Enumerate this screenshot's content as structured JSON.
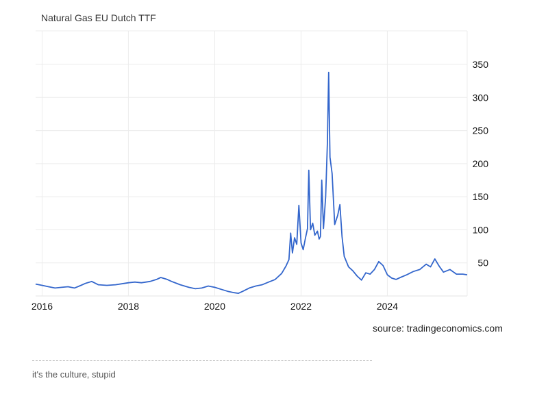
{
  "chart_data": {
    "type": "line",
    "title": "Natural Gas EU Dutch TTF",
    "xlabel": "",
    "ylabel": "",
    "xlim": [
      2015.85,
      2025.85
    ],
    "ylim": [
      0,
      350
    ],
    "x_ticks": [
      "2016",
      "2018",
      "2020",
      "2022",
      "2024"
    ],
    "y_ticks": [
      "50",
      "100",
      "150",
      "200",
      "250",
      "300",
      "350"
    ],
    "grid": true,
    "y_axis_position": "right",
    "series_color": "#3366cc",
    "series": [
      {
        "points": [
          [
            2015.85,
            18
          ],
          [
            2016.0,
            16
          ],
          [
            2016.15,
            14
          ],
          [
            2016.3,
            12
          ],
          [
            2016.45,
            13
          ],
          [
            2016.6,
            14
          ],
          [
            2016.75,
            12
          ],
          [
            2016.9,
            16
          ],
          [
            2017.0,
            19
          ],
          [
            2017.15,
            22
          ],
          [
            2017.3,
            17
          ],
          [
            2017.5,
            16
          ],
          [
            2017.7,
            17
          ],
          [
            2017.9,
            19
          ],
          [
            2018.0,
            20
          ],
          [
            2018.15,
            21
          ],
          [
            2018.3,
            20
          ],
          [
            2018.5,
            22
          ],
          [
            2018.65,
            25
          ],
          [
            2018.75,
            28
          ],
          [
            2018.9,
            25
          ],
          [
            2019.0,
            22
          ],
          [
            2019.2,
            17
          ],
          [
            2019.4,
            13
          ],
          [
            2019.55,
            11
          ],
          [
            2019.7,
            12
          ],
          [
            2019.85,
            15
          ],
          [
            2020.0,
            13
          ],
          [
            2020.15,
            10
          ],
          [
            2020.3,
            7
          ],
          [
            2020.45,
            5
          ],
          [
            2020.55,
            4
          ],
          [
            2020.65,
            7
          ],
          [
            2020.8,
            12
          ],
          [
            2020.95,
            15
          ],
          [
            2021.1,
            17
          ],
          [
            2021.25,
            21
          ],
          [
            2021.4,
            25
          ],
          [
            2021.55,
            34
          ],
          [
            2021.65,
            45
          ],
          [
            2021.72,
            55
          ],
          [
            2021.76,
            95
          ],
          [
            2021.8,
            65
          ],
          [
            2021.85,
            88
          ],
          [
            2021.9,
            78
          ],
          [
            2021.95,
            137
          ],
          [
            2022.0,
            80
          ],
          [
            2022.05,
            70
          ],
          [
            2022.1,
            87
          ],
          [
            2022.15,
            102
          ],
          [
            2022.18,
            190
          ],
          [
            2022.22,
            100
          ],
          [
            2022.27,
            110
          ],
          [
            2022.32,
            92
          ],
          [
            2022.38,
            98
          ],
          [
            2022.42,
            86
          ],
          [
            2022.45,
            90
          ],
          [
            2022.48,
            175
          ],
          [
            2022.52,
            102
          ],
          [
            2022.57,
            150
          ],
          [
            2022.61,
            230
          ],
          [
            2022.64,
            338
          ],
          [
            2022.67,
            210
          ],
          [
            2022.72,
            185
          ],
          [
            2022.78,
            108
          ],
          [
            2022.85,
            122
          ],
          [
            2022.9,
            138
          ],
          [
            2022.95,
            90
          ],
          [
            2023.0,
            60
          ],
          [
            2023.1,
            44
          ],
          [
            2023.2,
            38
          ],
          [
            2023.3,
            30
          ],
          [
            2023.4,
            24
          ],
          [
            2023.5,
            35
          ],
          [
            2023.6,
            33
          ],
          [
            2023.7,
            40
          ],
          [
            2023.8,
            52
          ],
          [
            2023.9,
            46
          ],
          [
            2024.0,
            32
          ],
          [
            2024.1,
            27
          ],
          [
            2024.2,
            25
          ],
          [
            2024.3,
            28
          ],
          [
            2024.45,
            32
          ],
          [
            2024.6,
            37
          ],
          [
            2024.75,
            40
          ],
          [
            2024.9,
            48
          ],
          [
            2025.0,
            44
          ],
          [
            2025.1,
            56
          ],
          [
            2025.2,
            45
          ],
          [
            2025.3,
            36
          ],
          [
            2025.45,
            40
          ],
          [
            2025.6,
            33
          ],
          [
            2025.75,
            33
          ],
          [
            2025.85,
            32
          ]
        ]
      }
    ]
  },
  "source": "source: tradingeconomics.com",
  "footer": "it's the culture, stupid"
}
